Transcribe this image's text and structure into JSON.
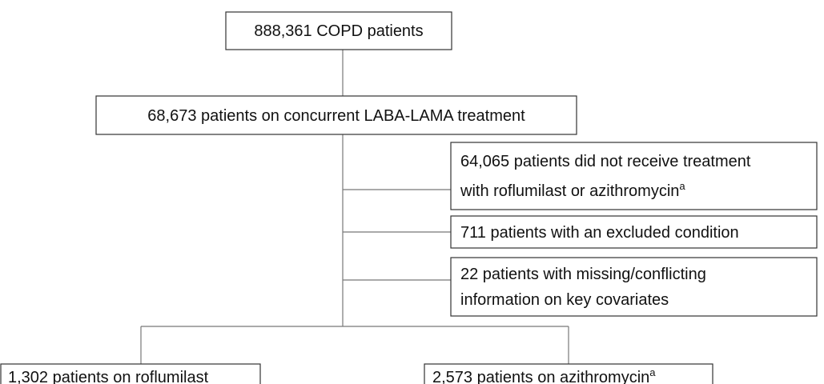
{
  "nodes": [
    {
      "label": "888,361 COPD patients"
    },
    {
      "label": "68,673 patients on concurrent LABA-LAMA treatment"
    },
    {
      "line1": "64,065 patients did not receive treatment",
      "line2": "with roflumilast or azithromycin",
      "sup": "a"
    },
    {
      "label": "711 patients with an excluded condition"
    },
    {
      "line1": "22 patients with missing/conflicting",
      "line2": "information on key covariates"
    },
    {
      "label": "1,302 patients on roflumilast"
    },
    {
      "label": "2,573 patients on azithromycin",
      "sup": "a"
    }
  ]
}
